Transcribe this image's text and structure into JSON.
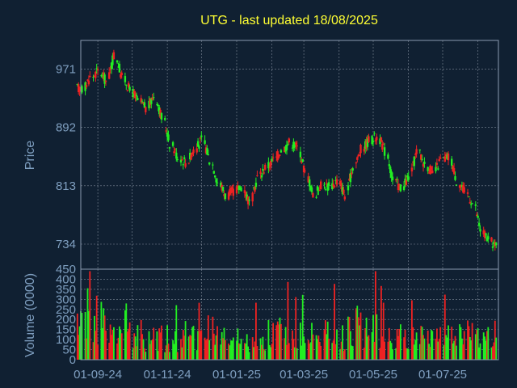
{
  "colors": {
    "background": "#102032",
    "frame": "#8a9ab0",
    "grid": "#c8d0dc",
    "title": "#ffff33",
    "axis_text": "#7f9fc0",
    "up": "#22ee22",
    "down": "#ee2222"
  },
  "chart_data": [
    {
      "type": "candlestick",
      "title": "UTG - last updated 18/08/2025",
      "ylabel": "Price",
      "yticks": [
        971,
        892,
        813,
        734
      ],
      "ylim": [
        700,
        1010
      ],
      "x_tick_labels": [
        "01-09-24",
        "01-11-24",
        "01-01-25",
        "01-03-25",
        "01-05-25",
        "01-07-25"
      ],
      "grid": true,
      "series": [
        {
          "name": "",
          "points": [
            {
              "date": "2024-08-19",
              "close": 945
            },
            {
              "date": "2024-08-26",
              "close": 960
            },
            {
              "date": "2024-09-02",
              "close": 968
            },
            {
              "date": "2024-09-09",
              "close": 955
            },
            {
              "date": "2024-09-16",
              "close": 990
            },
            {
              "date": "2024-09-23",
              "close": 960
            },
            {
              "date": "2024-09-30",
              "close": 942
            },
            {
              "date": "2024-10-07",
              "close": 928
            },
            {
              "date": "2024-10-14",
              "close": 918
            },
            {
              "date": "2024-10-21",
              "close": 935
            },
            {
              "date": "2024-10-28",
              "close": 905
            },
            {
              "date": "2024-11-04",
              "close": 870
            },
            {
              "date": "2024-11-11",
              "close": 852
            },
            {
              "date": "2024-11-18",
              "close": 845
            },
            {
              "date": "2024-11-25",
              "close": 862
            },
            {
              "date": "2024-12-02",
              "close": 875
            },
            {
              "date": "2024-12-09",
              "close": 848
            },
            {
              "date": "2024-12-16",
              "close": 818
            },
            {
              "date": "2024-12-23",
              "close": 800
            },
            {
              "date": "2024-12-30",
              "close": 806
            },
            {
              "date": "2025-01-06",
              "close": 812
            },
            {
              "date": "2025-01-13",
              "close": 790
            },
            {
              "date": "2025-01-20",
              "close": 825
            },
            {
              "date": "2025-01-27",
              "close": 838
            },
            {
              "date": "2025-02-03",
              "close": 848
            },
            {
              "date": "2025-02-10",
              "close": 862
            },
            {
              "date": "2025-02-17",
              "close": 872
            },
            {
              "date": "2025-02-24",
              "close": 865
            },
            {
              "date": "2025-03-03",
              "close": 830
            },
            {
              "date": "2025-03-10",
              "close": 800
            },
            {
              "date": "2025-03-17",
              "close": 815
            },
            {
              "date": "2025-03-24",
              "close": 812
            },
            {
              "date": "2025-03-31",
              "close": 820
            },
            {
              "date": "2025-04-07",
              "close": 800
            },
            {
              "date": "2025-04-14",
              "close": 840
            },
            {
              "date": "2025-04-21",
              "close": 862
            },
            {
              "date": "2025-04-28",
              "close": 875
            },
            {
              "date": "2025-05-05",
              "close": 880
            },
            {
              "date": "2025-05-12",
              "close": 860
            },
            {
              "date": "2025-05-19",
              "close": 820
            },
            {
              "date": "2025-05-26",
              "close": 810
            },
            {
              "date": "2025-06-02",
              "close": 825
            },
            {
              "date": "2025-06-09",
              "close": 860
            },
            {
              "date": "2025-06-16",
              "close": 842
            },
            {
              "date": "2025-06-23",
              "close": 830
            },
            {
              "date": "2025-06-30",
              "close": 848
            },
            {
              "date": "2025-07-07",
              "close": 852
            },
            {
              "date": "2025-07-14",
              "close": 820
            },
            {
              "date": "2025-07-21",
              "close": 805
            },
            {
              "date": "2025-07-28",
              "close": 790
            },
            {
              "date": "2025-08-04",
              "close": 752
            },
            {
              "date": "2025-08-11",
              "close": 738
            },
            {
              "date": "2025-08-18",
              "close": 730
            }
          ]
        }
      ]
    },
    {
      "type": "bar",
      "ylabel": "Volume (0000)",
      "yticks": [
        0,
        50,
        100,
        150,
        200,
        250,
        300,
        350,
        400,
        450
      ],
      "ylim": [
        0,
        450
      ],
      "grid": true,
      "bars_per_week": 5,
      "series": [
        {
          "name": "",
          "weekly_volume": [
            180,
            190,
            170,
            210,
            140,
            160,
            210,
            120,
            110,
            150,
            120,
            90,
            100,
            140,
            130,
            110,
            200,
            160,
            110,
            90,
            100,
            90,
            120,
            100,
            140,
            180,
            120,
            110,
            150,
            140,
            130,
            160,
            110,
            100,
            150,
            190,
            160,
            170,
            110,
            120,
            130,
            140,
            150,
            130,
            110,
            120,
            160,
            130,
            150,
            140,
            140,
            150,
            160
          ]
        }
      ]
    }
  ]
}
